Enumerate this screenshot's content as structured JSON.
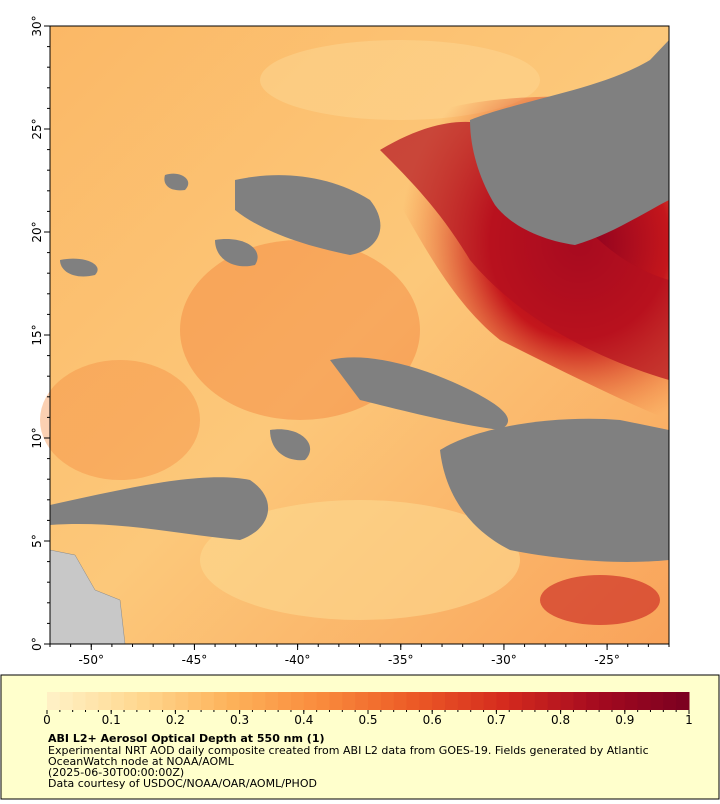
{
  "map": {
    "xlim": [
      -52,
      -22
    ],
    "ylim": [
      0,
      30
    ],
    "xticks": [
      {
        "value": -50,
        "label": "-50°"
      },
      {
        "value": -45,
        "label": "-45°"
      },
      {
        "value": -40,
        "label": "-40°"
      },
      {
        "value": -35,
        "label": "-35°"
      },
      {
        "value": -30,
        "label": "-30°"
      },
      {
        "value": -25,
        "label": "-25°"
      }
    ],
    "yticks": [
      {
        "value": 0,
        "label": "0°"
      },
      {
        "value": 5,
        "label": "5°"
      },
      {
        "value": 10,
        "label": "10°"
      },
      {
        "value": 15,
        "label": "15°"
      },
      {
        "value": 20,
        "label": "20°"
      },
      {
        "value": 25,
        "label": "25°"
      },
      {
        "value": 30,
        "label": "30°"
      }
    ]
  },
  "colorbar": {
    "range": [
      0,
      1
    ],
    "ticks": [
      0,
      0.1,
      0.2,
      0.3,
      0.4,
      0.5,
      0.6,
      0.7,
      0.8,
      0.9,
      1
    ],
    "colors": [
      "#fff2c8",
      "#ffd890",
      "#fdb25a",
      "#f98a3c",
      "#ec5a26",
      "#d42a1e",
      "#a50a1f",
      "#7a0020"
    ]
  },
  "caption": {
    "title": "ABI L2+ Aerosol Optical Depth at 550 nm (1)",
    "lines": [
      "Experimental NRT AOD daily composite created from ABI L2 data from GOES-19. Fields generated by Atlantic",
      "OceanWatch node at NOAA/AOML",
      "(2025-06-30T00:00:00Z)",
      "Data courtesy of USDOC/NOAA/OAR/AOML/PHOD"
    ]
  }
}
